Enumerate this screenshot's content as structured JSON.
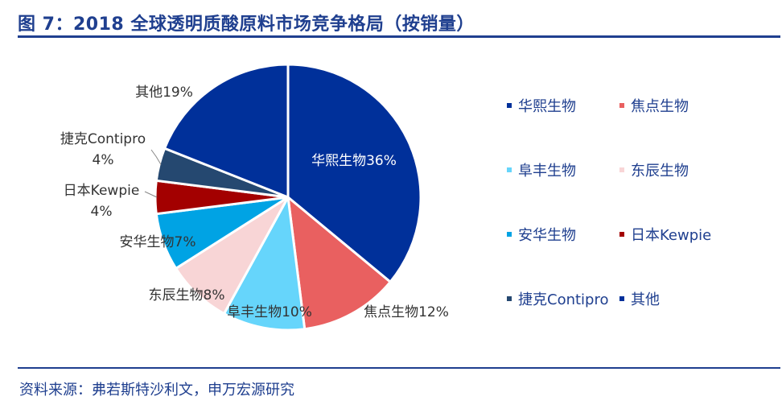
{
  "header": {
    "title": "图 7：2018 全球透明质酸原料市场竞争格局（按销量）"
  },
  "footer": {
    "source": "资料来源：弗若斯特沙利文，申万宏源研究"
  },
  "colors": {
    "brand": "#1f3f8f"
  },
  "chart_data": {
    "type": "pie",
    "slices": [
      {
        "name": "华熙生物",
        "value": 36,
        "label": "华熙生物36%",
        "color": "#00309a"
      },
      {
        "name": "焦点生物",
        "value": 12,
        "label": "焦点生物12%",
        "color": "#e96060"
      },
      {
        "name": "阜丰生物",
        "value": 10,
        "label": "阜丰生物10%",
        "color": "#66d5fb"
      },
      {
        "name": "东辰生物",
        "value": 8,
        "label": "东辰生物8%",
        "color": "#f8d5d6"
      },
      {
        "name": "安华生物",
        "value": 7,
        "label": "安华生物7%",
        "color": "#00a3e4"
      },
      {
        "name": "日本Kewpie",
        "value": 4,
        "label_line1": "日本Kewpie",
        "label_line2": "4%",
        "color": "#a30000"
      },
      {
        "name": "捷克Contipro",
        "value": 4,
        "label_line1": "捷克Contipro",
        "label_line2": "4%",
        "color": "#254870"
      },
      {
        "name": "其他",
        "value": 19,
        "label": "其他19%",
        "color": "#00309a"
      }
    ],
    "legend": {
      "placement": "right",
      "entries": [
        "华熙生物",
        "焦点生物",
        "阜丰生物",
        "东辰生物",
        "安华生物",
        "日本Kewpie",
        "捷克Contipro",
        "其他"
      ]
    }
  }
}
